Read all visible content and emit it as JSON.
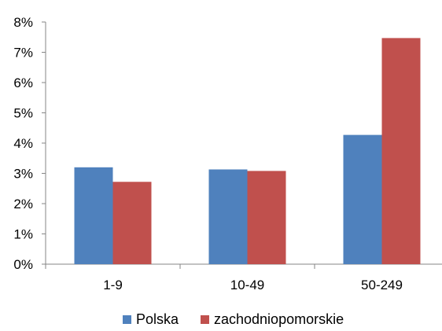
{
  "chart_data": {
    "type": "bar",
    "title": "",
    "xlabel": "",
    "ylabel": "",
    "categories": [
      "1-9",
      "10-49",
      "50-249"
    ],
    "series": [
      {
        "name": "Polska",
        "values": [
          3.2,
          3.13,
          4.27
        ],
        "color": "#4F81BD"
      },
      {
        "name": "zachodniopomorskie",
        "values": [
          2.72,
          3.08,
          7.47
        ],
        "color": "#C0504D"
      }
    ],
    "y_unit": "%",
    "ylim": [
      0,
      8
    ],
    "yticks": [
      "0%",
      "1%",
      "2%",
      "3%",
      "4%",
      "5%",
      "6%",
      "7%",
      "8%"
    ],
    "grid": false,
    "legend_position": "bottom"
  }
}
